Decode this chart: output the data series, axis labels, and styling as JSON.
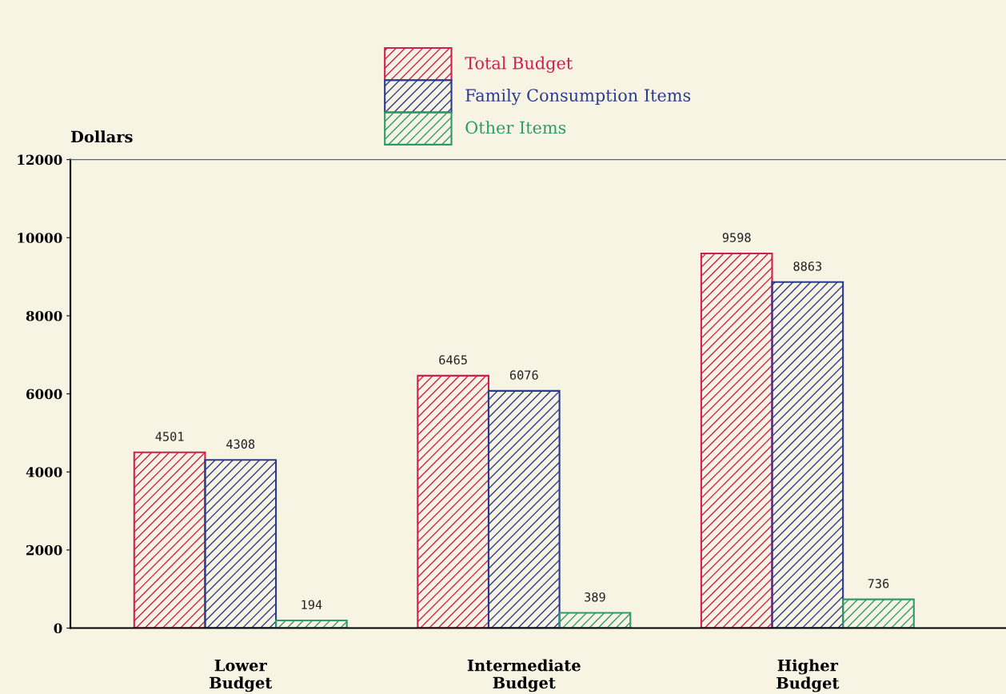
{
  "chart_data": {
    "type": "bar",
    "ylabel": "Dollars",
    "categories": [
      "Lower\nBudget",
      "Intermediate\nBudget",
      "Higher\nBudget"
    ],
    "series": [
      {
        "name": "Total Budget",
        "color": "#d01e50",
        "values": [
          4501,
          6465,
          9598
        ]
      },
      {
        "name": "Family Consumption Items",
        "color": "#2a3a8c",
        "values": [
          4308,
          6076,
          8863
        ]
      },
      {
        "name": "Other Items",
        "color": "#2e9a6a",
        "values": [
          194,
          389,
          736
        ]
      }
    ],
    "ylim": [
      0,
      12000
    ],
    "yticks": [
      0,
      2000,
      4000,
      6000,
      8000,
      10000,
      12000
    ],
    "data_labels": true,
    "legend": "top",
    "grid": false
  }
}
